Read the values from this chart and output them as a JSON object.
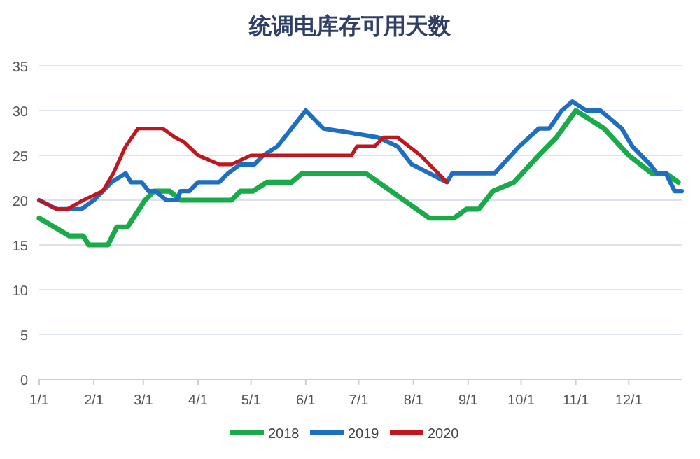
{
  "chart_data": {
    "type": "line",
    "title": "统调电库存可用天数",
    "xlim": [
      "--01-01",
      "--12-31"
    ],
    "xticks": [
      {
        "value": "--01-01",
        "label": "1/1"
      },
      {
        "value": "--02-01",
        "label": "2/1"
      },
      {
        "value": "--03-01",
        "label": "3/1"
      },
      {
        "value": "--04-01",
        "label": "4/1"
      },
      {
        "value": "--05-01",
        "label": "5/1"
      },
      {
        "value": "--06-01",
        "label": "6/1"
      },
      {
        "value": "--07-01",
        "label": "7/1"
      },
      {
        "value": "--08-01",
        "label": "8/1"
      },
      {
        "value": "--09-01",
        "label": "9/1"
      },
      {
        "value": "--10-01",
        "label": "10/1"
      },
      {
        "value": "--11-01",
        "label": "11/1"
      },
      {
        "value": "--12-01",
        "label": "12/1"
      }
    ],
    "ylim": [
      0,
      35
    ],
    "yticks": [
      0,
      5,
      10,
      15,
      20,
      25,
      30,
      35
    ],
    "grid": "y",
    "legend": "bottom",
    "line_style": "solid",
    "marker": "none",
    "series": [
      {
        "name": "2018",
        "color": "#1aaa4a",
        "x": [
          "--01-01",
          "--01-18",
          "--01-26",
          "--01-29",
          "--02-09",
          "--02-14",
          "--02-20",
          "--03-02",
          "--03-07",
          "--03-16",
          "--03-22",
          "--04-20",
          "--04-25",
          "--05-02",
          "--05-10",
          "--05-24",
          "--05-30",
          "--07-05",
          "--08-10",
          "--08-24",
          "--08-31",
          "--09-07",
          "--09-15",
          "--09-27",
          "--10-11",
          "--10-21",
          "--11-01",
          "--11-17",
          "--12-01",
          "--12-14",
          "--12-22",
          "--12-29"
        ],
        "values": [
          18,
          16,
          16,
          15,
          15,
          17,
          17,
          20,
          21,
          21,
          20,
          20,
          21,
          21,
          22,
          22,
          23,
          23,
          18,
          18,
          19,
          19,
          21,
          22,
          25,
          27,
          30,
          28,
          25,
          23,
          23,
          22
        ]
      },
      {
        "name": "2019",
        "color": "#1f6fc0",
        "x": [
          "--01-01",
          "--01-11",
          "--01-25",
          "--02-01",
          "--02-06",
          "--02-11",
          "--02-19",
          "--02-22",
          "--02-28",
          "--03-04",
          "--03-08",
          "--03-14",
          "--03-20",
          "--03-22",
          "--03-27",
          "--04-01",
          "--04-13",
          "--04-18",
          "--04-25",
          "--05-03",
          "--05-08",
          "--05-16",
          "--05-24",
          "--06-01",
          "--06-11",
          "--06-27",
          "--07-12",
          "--07-23",
          "--07-31",
          "--08-20",
          "--08-23",
          "--09-16",
          "--09-30",
          "--10-11",
          "--10-17",
          "--10-24",
          "--10-30",
          "--11-07",
          "--11-15",
          "--11-27",
          "--12-03",
          "--12-13",
          "--12-17",
          "--12-22",
          "--12-27",
          "--12-31"
        ],
        "values": [
          20,
          19,
          19,
          20,
          21,
          22,
          23,
          22,
          22,
          21,
          21,
          20,
          20,
          21,
          21,
          22,
          22,
          23,
          24,
          24,
          25,
          26,
          28,
          30,
          28,
          27.5,
          27,
          26,
          24,
          22,
          23,
          23,
          26,
          28,
          28,
          30,
          31,
          30,
          30,
          28,
          26,
          24,
          23,
          23,
          21,
          21
        ]
      },
      {
        "name": "2020",
        "color": "#c0161e",
        "x": [
          "--01-01",
          "--01-11",
          "--01-17",
          "--01-26",
          "--02-06",
          "--02-12",
          "--02-19",
          "--02-26",
          "--03-12",
          "--03-19",
          "--03-24",
          "--04-01",
          "--04-13",
          "--04-20",
          "--05-01",
          "--06-27",
          "--06-30",
          "--07-10",
          "--07-15",
          "--07-23",
          "--08-05",
          "--08-20"
        ],
        "values": [
          20,
          19,
          19,
          20,
          21,
          23,
          26,
          28,
          28,
          27,
          26.5,
          25,
          24,
          24,
          25,
          25,
          26,
          26,
          27,
          27,
          25,
          22
        ]
      }
    ]
  }
}
